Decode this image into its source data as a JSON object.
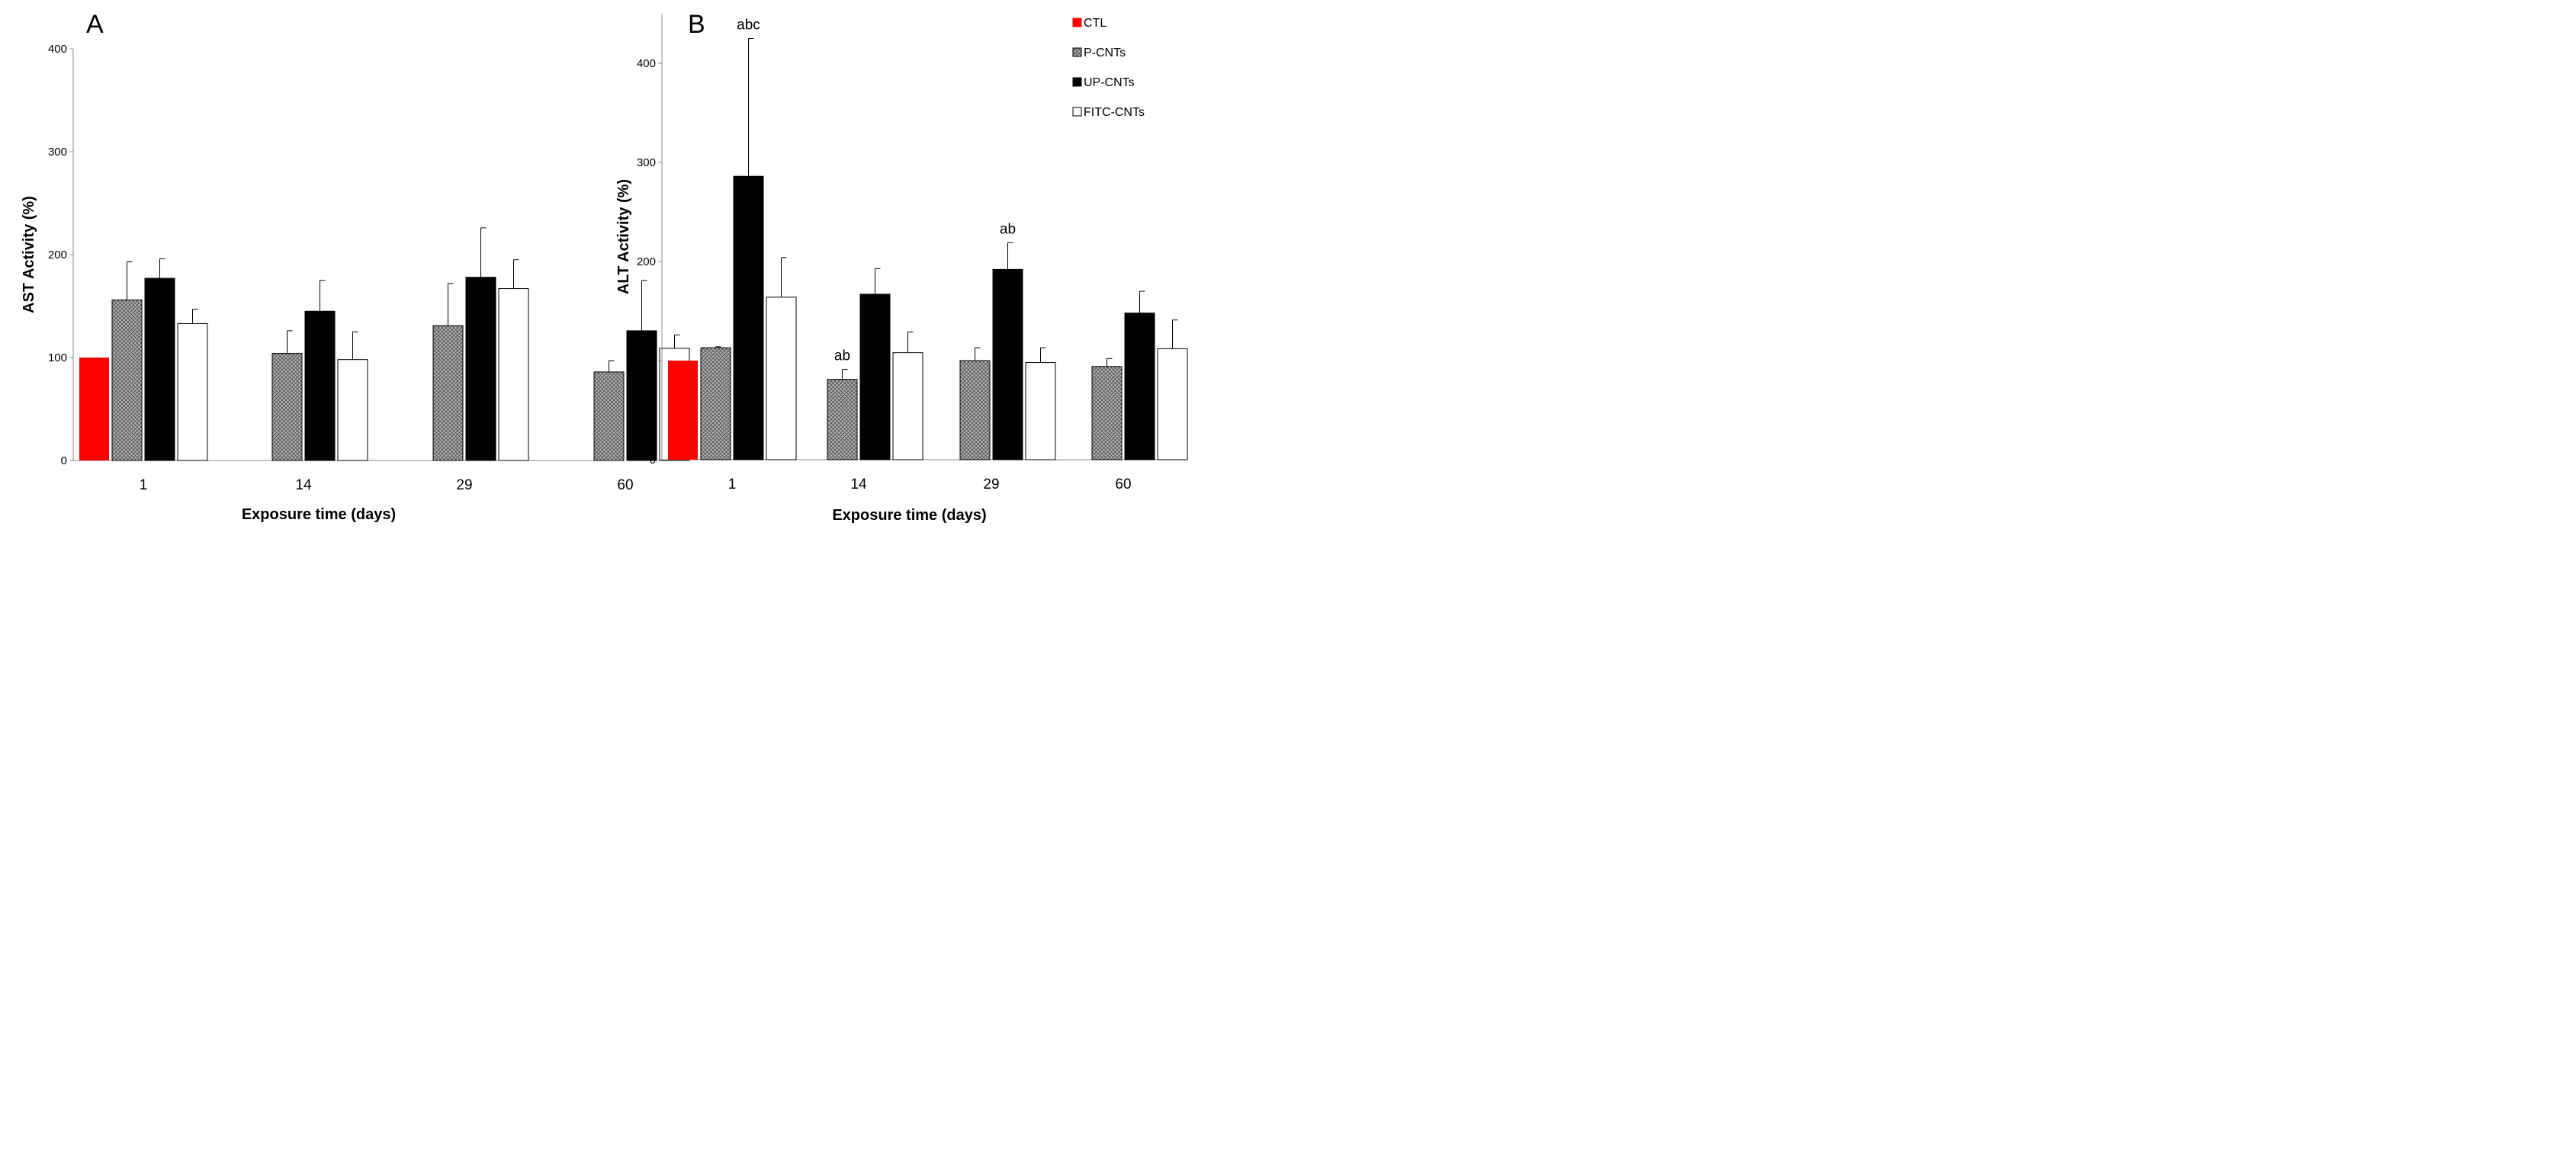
{
  "legend": [
    {
      "label": "CTL",
      "fill": "#ff0000",
      "pattern": "solid"
    },
    {
      "label": "P-CNTs",
      "fill": "#b0b0b0",
      "pattern": "crosshatch"
    },
    {
      "label": "UP-CNTs",
      "fill": "#000000",
      "pattern": "solid"
    },
    {
      "label": "FITC-CNTs",
      "fill": "#ffffff",
      "pattern": "solid"
    }
  ],
  "chart_data": [
    {
      "type": "bar",
      "panel": "A",
      "title": "",
      "xlabel": "Exposure time (days)",
      "ylabel": "AST Activity (%)",
      "ylim": [
        0,
        400
      ],
      "yticks": [
        0,
        100,
        200,
        300,
        400
      ],
      "categories": [
        "1",
        "14",
        "29",
        "60"
      ],
      "series": [
        {
          "name": "CTL",
          "values": [
            100,
            null,
            null,
            null
          ],
          "errors": [
            0,
            null,
            null,
            null
          ]
        },
        {
          "name": "P-CNTs",
          "values": [
            156,
            104,
            131,
            86
          ],
          "errors": [
            37,
            22,
            41,
            11
          ]
        },
        {
          "name": "UP-CNTs",
          "values": [
            177,
            145,
            178,
            126
          ],
          "errors": [
            19,
            30,
            48,
            49
          ]
        },
        {
          "name": "FITC-CNTs",
          "values": [
            133,
            98,
            167,
            109
          ],
          "errors": [
            14,
            27,
            28,
            13
          ]
        }
      ],
      "annotations": []
    },
    {
      "type": "bar",
      "panel": "B",
      "title": "",
      "xlabel": "Exposure time (days)",
      "ylabel": "ALT  Activity (%)",
      "ylim": [
        0,
        450
      ],
      "yticks": [
        0,
        100,
        200,
        300,
        400
      ],
      "categories": [
        "1",
        "14",
        "29",
        "60"
      ],
      "series": [
        {
          "name": "CTL",
          "values": [
            100,
            null,
            null,
            null
          ],
          "errors": [
            0,
            null,
            null,
            null
          ]
        },
        {
          "name": "P-CNTs",
          "values": [
            113,
            81,
            100,
            94
          ],
          "errors": [
            1,
            10,
            13,
            8
          ]
        },
        {
          "name": "UP-CNTs",
          "values": [
            286,
            167,
            192,
            148
          ],
          "errors": [
            139,
            26,
            27,
            22
          ]
        },
        {
          "name": "FITC-CNTs",
          "values": [
            164,
            108,
            98,
            112
          ],
          "errors": [
            40,
            21,
            15,
            29
          ]
        }
      ],
      "annotations": [
        {
          "text": "abc",
          "category": "1",
          "series": "UP-CNTs"
        },
        {
          "text": "ab",
          "category": "14",
          "series": "P-CNTs"
        },
        {
          "text": "ab",
          "category": "29",
          "series": "UP-CNTs"
        }
      ]
    }
  ]
}
